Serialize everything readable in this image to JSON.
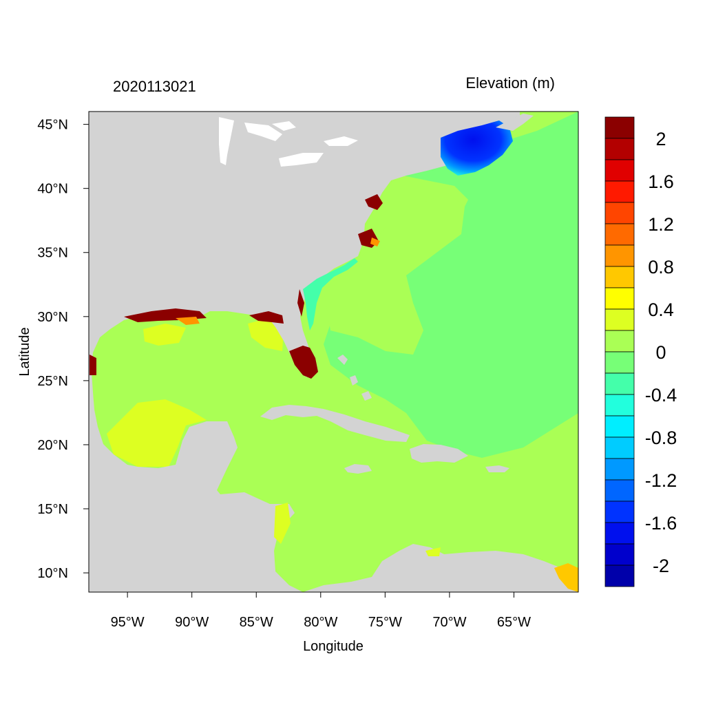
{
  "map": {
    "left_title": "2020113021",
    "right_title": "Elevation (m)",
    "xlabel": "Longitude",
    "ylabel": "Latitude",
    "lon_range": [
      -98,
      -60
    ],
    "lat_range": [
      8.5,
      46
    ],
    "lon_ticks": [
      {
        "value": -95,
        "label": "95°W"
      },
      {
        "value": -90,
        "label": "90°W"
      },
      {
        "value": -85,
        "label": "85°W"
      },
      {
        "value": -80,
        "label": "80°W"
      },
      {
        "value": -75,
        "label": "75°W"
      },
      {
        "value": -70,
        "label": "70°W"
      },
      {
        "value": -65,
        "label": "65°W"
      }
    ],
    "lat_ticks": [
      {
        "value": 45,
        "label": "45°N"
      },
      {
        "value": 40,
        "label": "40°N"
      },
      {
        "value": 35,
        "label": "35°N"
      },
      {
        "value": 30,
        "label": "30°N"
      },
      {
        "value": 25,
        "label": "25°N"
      },
      {
        "value": 20,
        "label": "20°N"
      },
      {
        "value": 15,
        "label": "15°N"
      },
      {
        "value": 10,
        "label": "10°N"
      }
    ]
  },
  "colorbar": {
    "colors": [
      "#8b0000",
      "#b30000",
      "#e00000",
      "#ff1a00",
      "#ff4500",
      "#ff6a00",
      "#ff9500",
      "#ffc800",
      "#ffff00",
      "#ddff22",
      "#aaff55",
      "#77ff77",
      "#44ffaa",
      "#22ffdd",
      "#00eeff",
      "#00ccff",
      "#0099ff",
      "#0066ff",
      "#0033ff",
      "#0010ee",
      "#0000cc",
      "#0000aa"
    ],
    "labels": [
      "2",
      "1.6",
      "1.2",
      "0.8",
      "0.4",
      "0",
      "-0.4",
      "-0.8",
      "-1.2",
      "-1.6",
      "-2"
    ]
  },
  "colors": {
    "land": "#d3d3d3",
    "ocean_zero": "#77ff77",
    "ocean_slight_positive": "#aaff55",
    "high_surge": "#8b0000",
    "low_surge": "#0010ee"
  }
}
